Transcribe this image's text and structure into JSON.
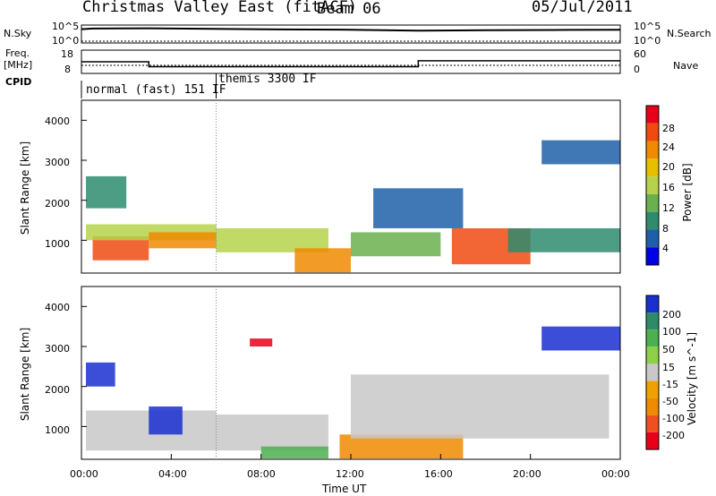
{
  "header": {
    "title": "Christmas Valley East (fitACF)",
    "beam": "Beam 06",
    "date": "05/Jul/2011"
  },
  "left_labels": {
    "nsky": "N.Sky",
    "freq": "Freq.",
    "freq_unit": "[MHz]",
    "cpid": "CPID"
  },
  "right_labels": {
    "nsearch": "N.Search",
    "nave": "Nave"
  },
  "noise_panel": {
    "y_ticks_left": [
      "10^5",
      "10^0"
    ],
    "y_ticks_right": [
      "10^5",
      "10^0"
    ]
  },
  "freq_panel": {
    "y_ticks_left": [
      "18",
      "8"
    ],
    "y_ticks_right": [
      "60",
      "0"
    ]
  },
  "cpid_panel": {
    "modes": [
      {
        "label": "normal (fast) 151 IF",
        "start_hour": 0,
        "end_hour": 6
      },
      {
        "label": "themis 3300 IF",
        "start_hour": 6,
        "end_hour": 24
      }
    ]
  },
  "power_panel": {
    "ylabel": "Slant Range [km]",
    "y_ticks": [
      "4000",
      "3000",
      "2000",
      "1000"
    ],
    "colorbar_label": "Power [dB]",
    "colorbar_ticks": [
      "28",
      "24",
      "20",
      "16",
      "12",
      "8",
      "4"
    ],
    "colorbar_colors": [
      "#e8001a",
      "#f04a10",
      "#f08a00",
      "#e6c000",
      "#b6d24a",
      "#6bb04f",
      "#2e8b6e",
      "#1f5fa8",
      "#0000e8"
    ]
  },
  "velocity_panel": {
    "ylabel": "Slant Range [km]",
    "y_ticks": [
      "4000",
      "3000",
      "2000",
      "1000"
    ],
    "colorbar_label": "Velocity [m s^-1]",
    "colorbar_ticks": [
      "200",
      "100",
      "50",
      "15",
      "-15",
      "-50",
      "-100",
      "-200"
    ],
    "colorbar_colors": [
      "#1a2fd0",
      "#2d8b6a",
      "#4caf50",
      "#8ed04a",
      "#c8c8c8",
      "#f0a000",
      "#f08a00",
      "#f05020",
      "#e8001a"
    ]
  },
  "x_axis": {
    "label": "Time UT",
    "ticks": [
      "00:00",
      "04:00",
      "08:00",
      "12:00",
      "16:00",
      "20:00",
      "00:00"
    ]
  },
  "chart_data": [
    {
      "type": "line",
      "name": "N.Sky noise",
      "x": [
        0,
        0.5,
        3,
        6,
        9,
        12,
        15,
        18,
        21,
        24
      ],
      "y_log10": [
        4.2,
        4.4,
        4.5,
        4.3,
        4.1,
        4.0,
        3.7,
        3.8,
        3.9,
        4.0
      ]
    },
    {
      "type": "line",
      "name": "Frequency",
      "x": [
        0,
        3,
        3,
        15,
        15,
        24
      ],
      "values": [
        13,
        13,
        10.5,
        10.5,
        13.5,
        13.5
      ],
      "ylim": [
        8,
        18
      ]
    },
    {
      "type": "heatmap",
      "panel": "Power",
      "xlabel": "Time UT",
      "ylabel": "Slant Range [km]",
      "xlim": [
        0,
        24
      ],
      "ylim": [
        180,
        4500
      ],
      "colorbar": {
        "label": "Power [dB]",
        "range": [
          0,
          30
        ]
      },
      "regions": [
        {
          "t0": 0.5,
          "t1": 3.0,
          "r0": 500,
          "r1": 1100,
          "level": 26
        },
        {
          "t0": 0.2,
          "t1": 6.0,
          "r0": 1000,
          "r1": 1400,
          "level": 14
        },
        {
          "t0": 0.2,
          "t1": 2.0,
          "r0": 1800,
          "r1": 2600,
          "level": 6
        },
        {
          "t0": 3.0,
          "t1": 6.0,
          "r0": 800,
          "r1": 1200,
          "level": 24
        },
        {
          "t0": 6.0,
          "t1": 11.0,
          "r0": 700,
          "r1": 1300,
          "level": 16
        },
        {
          "t0": 9.5,
          "t1": 12.0,
          "r0": 200,
          "r1": 800,
          "level": 22
        },
        {
          "t0": 12.0,
          "t1": 16.0,
          "r0": 600,
          "r1": 1200,
          "level": 10
        },
        {
          "t0": 16.5,
          "t1": 20.0,
          "r0": 400,
          "r1": 1300,
          "level": 26
        },
        {
          "t0": 19.0,
          "t1": 24.0,
          "r0": 700,
          "r1": 1300,
          "level": 8
        },
        {
          "t0": 20.5,
          "t1": 24.0,
          "r0": 2900,
          "r1": 3500,
          "level": 4
        },
        {
          "t0": 13.0,
          "t1": 17.0,
          "r0": 1300,
          "r1": 2300,
          "level": 4
        }
      ]
    },
    {
      "type": "heatmap",
      "panel": "Velocity",
      "xlabel": "Time UT",
      "ylabel": "Slant Range [km]",
      "xlim": [
        0,
        24
      ],
      "ylim": [
        180,
        4500
      ],
      "colorbar": {
        "label": "Velocity [m s^-1]",
        "range": [
          -250,
          250
        ]
      },
      "regions": [
        {
          "t0": 0.2,
          "t1": 6.0,
          "r0": 400,
          "r1": 1400,
          "value": 0
        },
        {
          "t0": 3.0,
          "t1": 4.5,
          "r0": 800,
          "r1": 1500,
          "value": 210
        },
        {
          "t0": 0.2,
          "t1": 1.5,
          "r0": 2000,
          "r1": 2600,
          "value": 210
        },
        {
          "t0": 6.0,
          "t1": 11.0,
          "r0": 400,
          "r1": 1300,
          "value": 0
        },
        {
          "t0": 8.0,
          "t1": 11.0,
          "r0": 200,
          "r1": 500,
          "value": 40
        },
        {
          "t0": 11.5,
          "t1": 17.0,
          "r0": 200,
          "r1": 800,
          "value": -40
        },
        {
          "t0": 12.0,
          "t1": 23.5,
          "r0": 700,
          "r1": 2300,
          "value": 0
        },
        {
          "t0": 20.5,
          "t1": 24.0,
          "r0": 2900,
          "r1": 3500,
          "value": 210
        },
        {
          "t0": 7.5,
          "t1": 8.5,
          "r0": 3000,
          "r1": 3200,
          "value": -220
        }
      ]
    }
  ]
}
